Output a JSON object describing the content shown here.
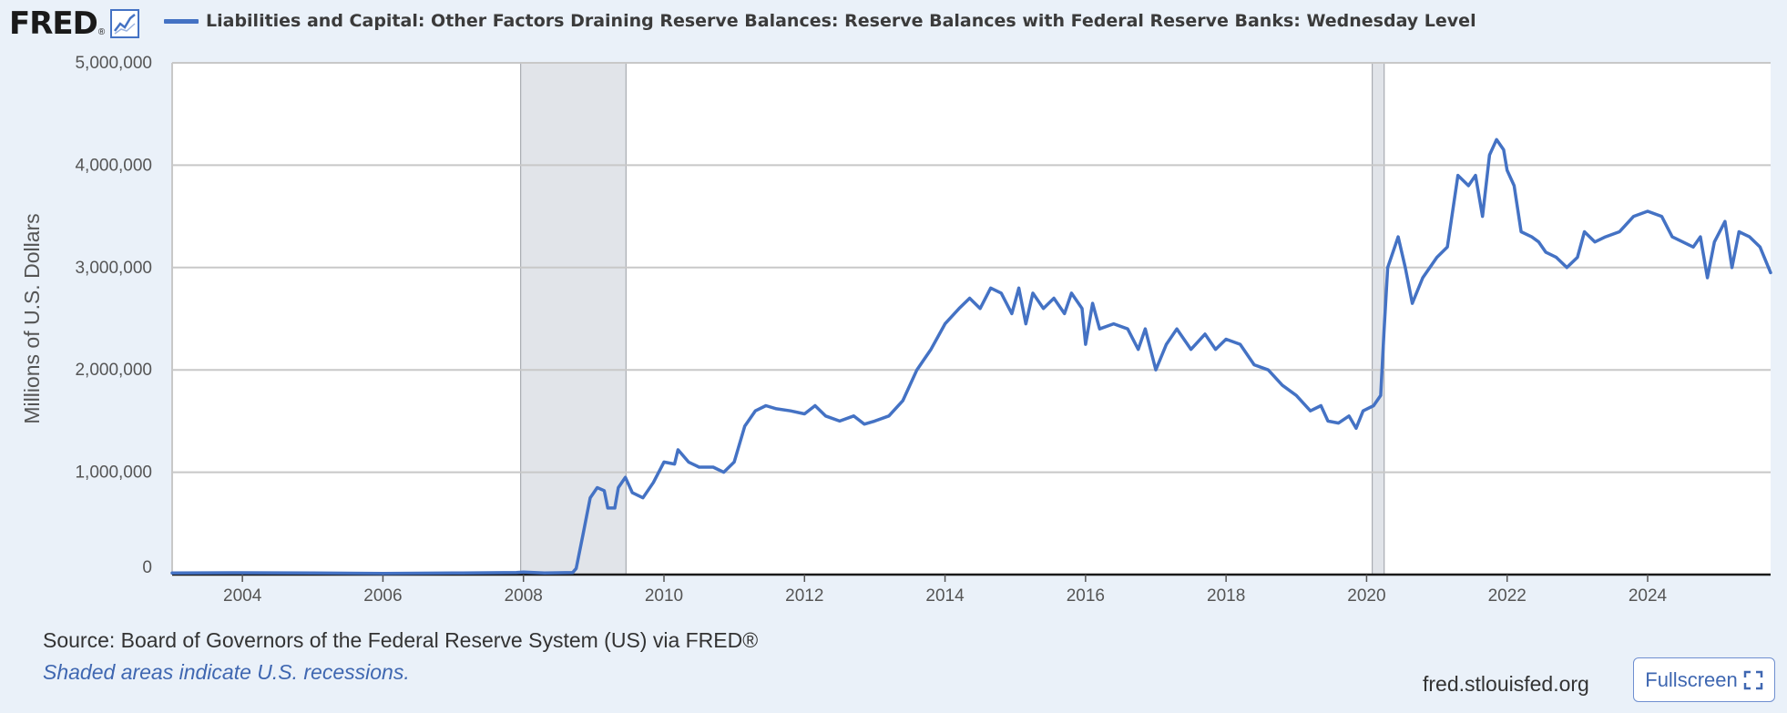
{
  "header": {
    "logo_text": "FRED",
    "logo_reg": "®",
    "logo_icon": "trend-chart-icon"
  },
  "chart_data": {
    "type": "line",
    "title": "Liabilities and Capital: Other Factors Draining Reserve Balances: Reserve Balances with Federal Reserve Banks: Wednesday Level",
    "ylabel": "Millions of U.S. Dollars",
    "xlabel": "",
    "xlim": [
      2003.0,
      2025.75
    ],
    "ylim": [
      0,
      5000000
    ],
    "y_ticks": [
      0,
      1000000,
      2000000,
      3000000,
      4000000,
      5000000
    ],
    "y_tick_labels": [
      "0",
      "1,000,000",
      "2,000,000",
      "3,000,000",
      "4,000,000",
      "5,000,000"
    ],
    "x_ticks": [
      2004,
      2006,
      2008,
      2010,
      2012,
      2014,
      2016,
      2018,
      2020,
      2022,
      2024
    ],
    "x_tick_labels": [
      "2004",
      "2006",
      "2008",
      "2010",
      "2012",
      "2014",
      "2016",
      "2018",
      "2020",
      "2022",
      "2024"
    ],
    "grid": true,
    "recessions": [
      [
        2007.96,
        2009.46
      ],
      [
        2020.08,
        2020.25
      ]
    ],
    "series": [
      {
        "name": "Liabilities and Capital: Other Factors Draining Reserve Balances: Reserve Balances with Federal Reserve Banks: Wednesday Level",
        "color": "#4472c4",
        "points": [
          [
            2003.0,
            15000
          ],
          [
            2004.0,
            18000
          ],
          [
            2005.0,
            15000
          ],
          [
            2006.0,
            12000
          ],
          [
            2007.0,
            15000
          ],
          [
            2007.9,
            20000
          ],
          [
            2008.0,
            25000
          ],
          [
            2008.3,
            15000
          ],
          [
            2008.7,
            20000
          ],
          [
            2008.75,
            60000
          ],
          [
            2008.85,
            400000
          ],
          [
            2008.95,
            750000
          ],
          [
            2009.05,
            850000
          ],
          [
            2009.15,
            820000
          ],
          [
            2009.2,
            650000
          ],
          [
            2009.3,
            650000
          ],
          [
            2009.35,
            850000
          ],
          [
            2009.45,
            950000
          ],
          [
            2009.55,
            800000
          ],
          [
            2009.7,
            750000
          ],
          [
            2009.85,
            900000
          ],
          [
            2010.0,
            1100000
          ],
          [
            2010.15,
            1080000
          ],
          [
            2010.2,
            1220000
          ],
          [
            2010.35,
            1100000
          ],
          [
            2010.5,
            1050000
          ],
          [
            2010.7,
            1050000
          ],
          [
            2010.85,
            1000000
          ],
          [
            2011.0,
            1100000
          ],
          [
            2011.15,
            1450000
          ],
          [
            2011.3,
            1600000
          ],
          [
            2011.45,
            1650000
          ],
          [
            2011.6,
            1620000
          ],
          [
            2011.8,
            1600000
          ],
          [
            2012.0,
            1570000
          ],
          [
            2012.15,
            1650000
          ],
          [
            2012.3,
            1550000
          ],
          [
            2012.5,
            1500000
          ],
          [
            2012.7,
            1550000
          ],
          [
            2012.85,
            1470000
          ],
          [
            2013.0,
            1500000
          ],
          [
            2013.2,
            1550000
          ],
          [
            2013.4,
            1700000
          ],
          [
            2013.6,
            2000000
          ],
          [
            2013.8,
            2200000
          ],
          [
            2014.0,
            2450000
          ],
          [
            2014.2,
            2600000
          ],
          [
            2014.35,
            2700000
          ],
          [
            2014.5,
            2600000
          ],
          [
            2014.65,
            2800000
          ],
          [
            2014.8,
            2750000
          ],
          [
            2014.95,
            2550000
          ],
          [
            2015.05,
            2800000
          ],
          [
            2015.15,
            2450000
          ],
          [
            2015.25,
            2750000
          ],
          [
            2015.4,
            2600000
          ],
          [
            2015.55,
            2700000
          ],
          [
            2015.7,
            2550000
          ],
          [
            2015.8,
            2750000
          ],
          [
            2015.95,
            2600000
          ],
          [
            2016.0,
            2250000
          ],
          [
            2016.1,
            2650000
          ],
          [
            2016.2,
            2400000
          ],
          [
            2016.4,
            2450000
          ],
          [
            2016.6,
            2400000
          ],
          [
            2016.75,
            2200000
          ],
          [
            2016.85,
            2400000
          ],
          [
            2017.0,
            2000000
          ],
          [
            2017.15,
            2250000
          ],
          [
            2017.3,
            2400000
          ],
          [
            2017.5,
            2200000
          ],
          [
            2017.7,
            2350000
          ],
          [
            2017.85,
            2200000
          ],
          [
            2018.0,
            2300000
          ],
          [
            2018.2,
            2250000
          ],
          [
            2018.4,
            2050000
          ],
          [
            2018.6,
            2000000
          ],
          [
            2018.8,
            1850000
          ],
          [
            2019.0,
            1750000
          ],
          [
            2019.2,
            1600000
          ],
          [
            2019.35,
            1650000
          ],
          [
            2019.45,
            1500000
          ],
          [
            2019.6,
            1480000
          ],
          [
            2019.75,
            1550000
          ],
          [
            2019.85,
            1430000
          ],
          [
            2019.95,
            1600000
          ],
          [
            2020.1,
            1650000
          ],
          [
            2020.2,
            1750000
          ],
          [
            2020.25,
            2400000
          ],
          [
            2020.3,
            3000000
          ],
          [
            2020.45,
            3300000
          ],
          [
            2020.55,
            3000000
          ],
          [
            2020.65,
            2650000
          ],
          [
            2020.8,
            2900000
          ],
          [
            2021.0,
            3100000
          ],
          [
            2021.15,
            3200000
          ],
          [
            2021.3,
            3900000
          ],
          [
            2021.45,
            3800000
          ],
          [
            2021.55,
            3900000
          ],
          [
            2021.65,
            3500000
          ],
          [
            2021.75,
            4100000
          ],
          [
            2021.85,
            4250000
          ],
          [
            2021.95,
            4150000
          ],
          [
            2022.0,
            3950000
          ],
          [
            2022.1,
            3800000
          ],
          [
            2022.2,
            3350000
          ],
          [
            2022.35,
            3300000
          ],
          [
            2022.45,
            3250000
          ],
          [
            2022.55,
            3150000
          ],
          [
            2022.7,
            3100000
          ],
          [
            2022.85,
            3000000
          ],
          [
            2023.0,
            3100000
          ],
          [
            2023.1,
            3350000
          ],
          [
            2023.25,
            3250000
          ],
          [
            2023.4,
            3300000
          ],
          [
            2023.6,
            3350000
          ],
          [
            2023.8,
            3500000
          ],
          [
            2024.0,
            3550000
          ],
          [
            2024.2,
            3500000
          ],
          [
            2024.35,
            3300000
          ],
          [
            2024.5,
            3250000
          ],
          [
            2024.65,
            3200000
          ],
          [
            2024.75,
            3300000
          ],
          [
            2024.85,
            2900000
          ],
          [
            2024.95,
            3250000
          ],
          [
            2025.1,
            3450000
          ],
          [
            2025.2,
            3000000
          ],
          [
            2025.3,
            3350000
          ],
          [
            2025.45,
            3300000
          ],
          [
            2025.6,
            3200000
          ],
          [
            2025.75,
            2950000
          ]
        ]
      }
    ]
  },
  "footer": {
    "source": "Source: Board of Governors of the Federal Reserve System (US) via FRED®",
    "note": "Shaded areas indicate U.S. recessions.",
    "site": "fred.stlouisfed.org",
    "fullscreen_label": "Fullscreen"
  }
}
